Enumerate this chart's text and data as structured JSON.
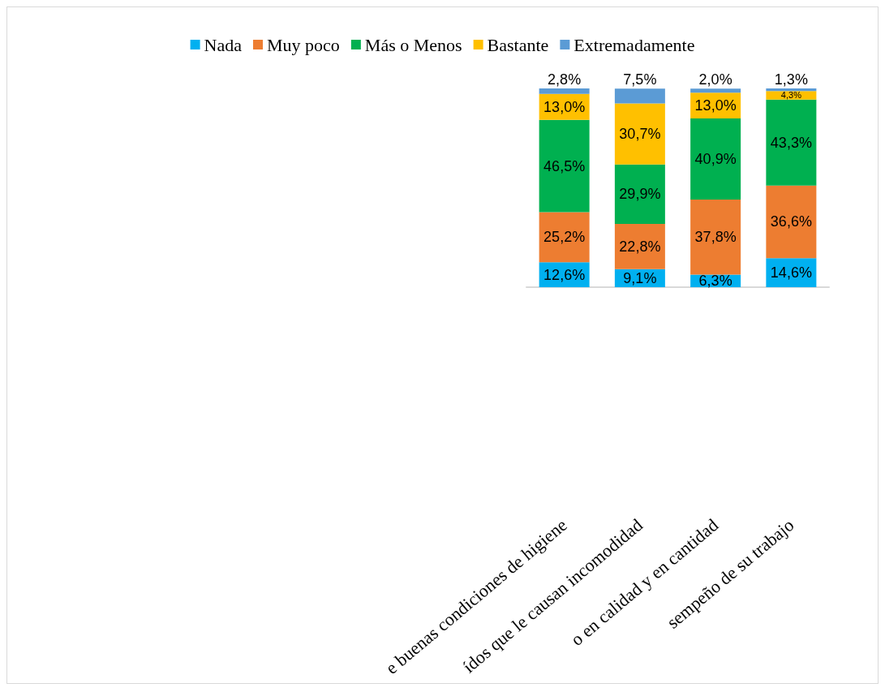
{
  "chart_data": {
    "type": "bar",
    "stacked": true,
    "legend": "top",
    "grid": false,
    "categories": [
      "e buenas condiciones de higiene",
      "ídos que le causan incomodidad",
      "o en calidad y en cantidad",
      "sempeño de su trabajo"
    ],
    "series": [
      {
        "name": "Nada",
        "color": "#00b0f0",
        "values": [
          12.6,
          9.1,
          6.3,
          14.6
        ],
        "value_labels": [
          "12,6%",
          "9,1%",
          "6,3%",
          "14,6%"
        ]
      },
      {
        "name": "Muy poco",
        "color": "#ed7d31",
        "values": [
          25.2,
          22.8,
          37.8,
          36.6
        ],
        "value_labels": [
          "25,2%",
          "22,8%",
          "37,8%",
          "36,6%"
        ]
      },
      {
        "name": "Más o Menos",
        "color": "#00b050",
        "values": [
          46.5,
          29.9,
          40.9,
          43.3
        ],
        "value_labels": [
          "46,5%",
          "29,9%",
          "40,9%",
          "43,3%"
        ]
      },
      {
        "name": "Bastante",
        "color": "#ffc000",
        "values": [
          13.0,
          30.7,
          13.0,
          4.3
        ],
        "value_labels": [
          "13,0%",
          "30,7%",
          "13,0%",
          "4,3%"
        ]
      },
      {
        "name": "Extremadamente",
        "color": "#5b9bd5",
        "values": [
          2.8,
          7.5,
          2.0,
          1.3
        ],
        "value_labels": [
          "2,8%",
          "7,5%",
          "2,0%",
          "1,3%"
        ]
      }
    ]
  }
}
